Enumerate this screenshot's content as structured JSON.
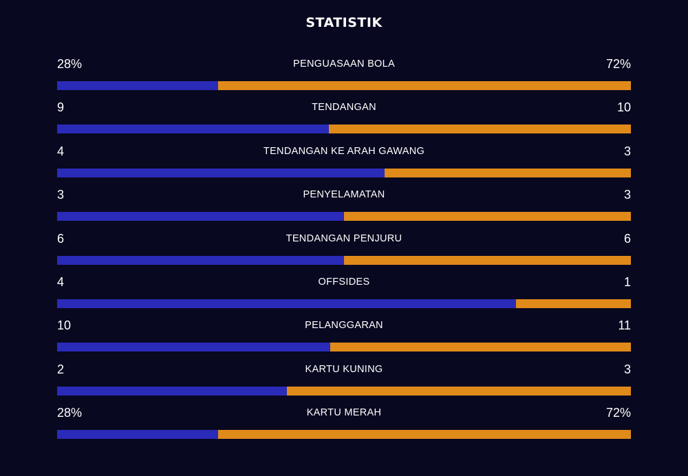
{
  "title": "STATISTIK",
  "colors": {
    "background": "#080820",
    "home_bar": "#2a2bb8",
    "away_bar": "#e08a1a",
    "text": "#ffffff"
  },
  "stats": [
    {
      "label": "PENGUASAAN BOLA",
      "home": "28%",
      "away": "72%",
      "home_share": 0.28
    },
    {
      "label": "TENDANGAN",
      "home": "9",
      "away": "10",
      "home_share": 0.474
    },
    {
      "label": "TENDANGAN KE ARAH GAWANG",
      "home": "4",
      "away": "3",
      "home_share": 0.571
    },
    {
      "label": "PENYELAMATAN",
      "home": "3",
      "away": "3",
      "home_share": 0.5
    },
    {
      "label": "TENDANGAN PENJURU",
      "home": "6",
      "away": "6",
      "home_share": 0.5
    },
    {
      "label": "OFFSIDES",
      "home": "4",
      "away": "1",
      "home_share": 0.8
    },
    {
      "label": "PELANGGARAN",
      "home": "10",
      "away": "11",
      "home_share": 0.476
    },
    {
      "label": "KARTU KUNING",
      "home": "2",
      "away": "3",
      "home_share": 0.4
    },
    {
      "label": "KARTU MERAH",
      "home": "28%",
      "away": "72%",
      "home_share": 0.28
    }
  ]
}
